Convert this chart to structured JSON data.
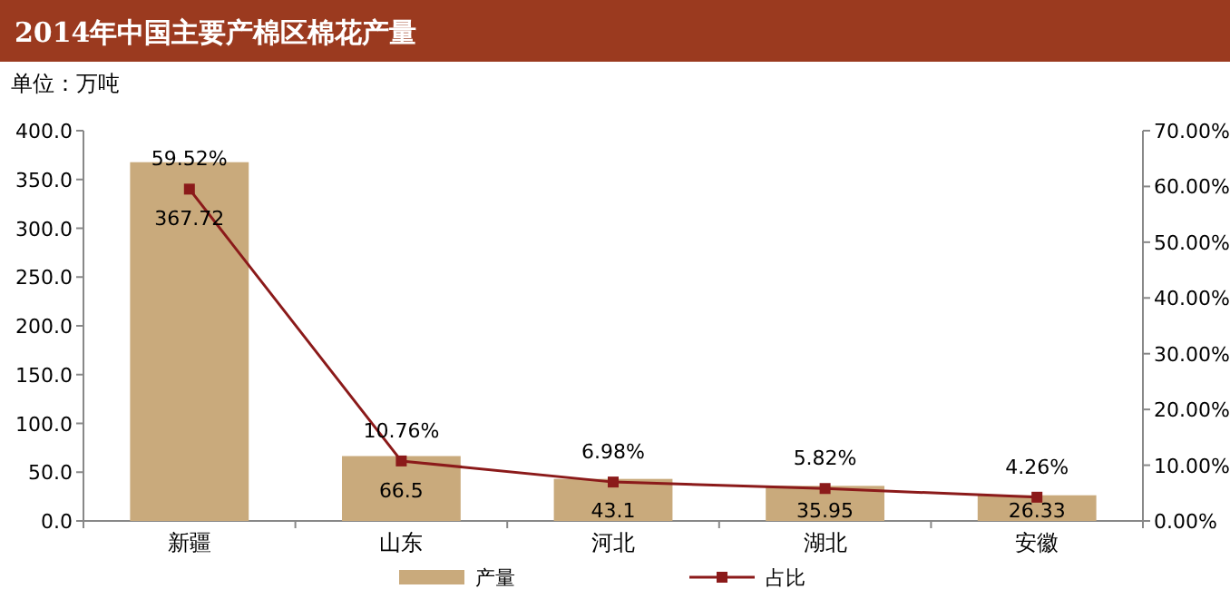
{
  "chart_data": {
    "type": "bar",
    "title": "2014年中国主要产棉区棉花产量",
    "ylabel": "单位：万吨",
    "categories": [
      "新疆",
      "山东",
      "河北",
      "湖北",
      "安徽"
    ],
    "series": [
      {
        "name": "产量",
        "color": "#c9aa7c",
        "values": [
          367.72,
          66.5,
          43.1,
          35.95,
          26.33
        ]
      },
      {
        "name": "占比",
        "type": "line",
        "axis": "y2",
        "color": "#8b1a1a",
        "marker": "square",
        "value_labels": [
          "59.52%",
          "10.76%",
          "6.98%",
          "5.82%",
          "4.26%"
        ],
        "values": [
          59.52,
          10.76,
          6.98,
          5.82,
          4.26
        ]
      }
    ],
    "data_labels": true,
    "ylim": [
      0,
      400
    ],
    "yticks": [
      {
        "value": 0,
        "label": "0.0"
      },
      {
        "value": 50,
        "label": "50.0"
      },
      {
        "value": 100,
        "label": "100.0"
      },
      {
        "value": 150,
        "label": "150.0"
      },
      {
        "value": 200,
        "label": "200.0"
      },
      {
        "value": 250,
        "label": "250.0"
      },
      {
        "value": 300,
        "label": "300.0"
      },
      {
        "value": 350,
        "label": "350.0"
      },
      {
        "value": 400,
        "label": "400.0"
      }
    ],
    "y2lim": [
      0,
      70
    ],
    "y2ticks": [
      {
        "value": 0,
        "label": "0.00%"
      },
      {
        "value": 10,
        "label": "10.00%"
      },
      {
        "value": 20,
        "label": "20.00%"
      },
      {
        "value": 30,
        "label": "30.00%"
      },
      {
        "value": 40,
        "label": "40.00%"
      },
      {
        "value": 50,
        "label": "50.00%"
      },
      {
        "value": 60,
        "label": "60.00%"
      },
      {
        "value": 70,
        "label": "70.00%"
      }
    ],
    "legend": "bottom",
    "grid": false
  }
}
